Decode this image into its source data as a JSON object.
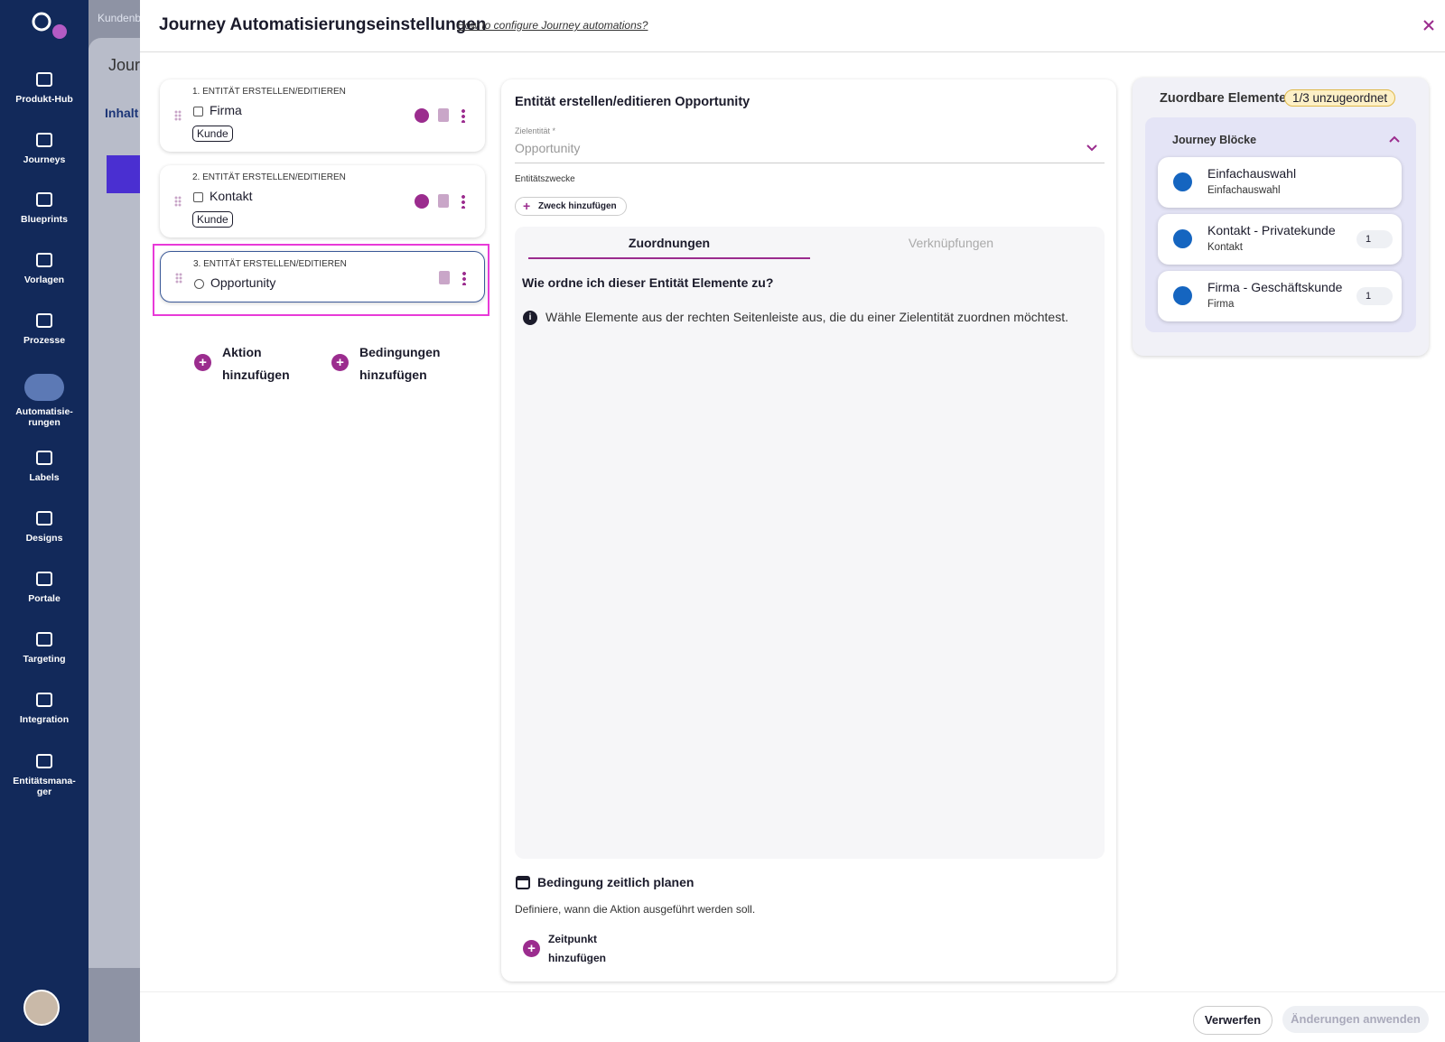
{
  "sidebar": {
    "items": [
      "Produkt-Hub",
      "Journeys",
      "Blueprints",
      "Vorlagen",
      "Prozesse",
      "Automatisie-\nrungen",
      "Labels",
      "Designs",
      "Portale",
      "Targeting",
      "Integration",
      "Entitätsmana-\nger"
    ]
  },
  "background": {
    "breadcrumb": "Kundenb",
    "page_title": "Jour",
    "tab": "Inhalt"
  },
  "header": {
    "title": "Journey Automatisierungseinstellungen",
    "help_link": "How to configure Journey automations?"
  },
  "actions": [
    {
      "label": "1. ENTITÄT ERSTELLEN/EDITIEREN",
      "entity": "Firma",
      "tag": "Kunde"
    },
    {
      "label": "2. ENTITÄT ERSTELLEN/EDITIEREN",
      "entity": "Kontakt",
      "tag": "Kunde"
    },
    {
      "label": "3. ENTITÄT ERSTELLEN/EDITIEREN",
      "entity": "Opportunity"
    }
  ],
  "add_buttons": {
    "action": "Aktion\nhinzufügen",
    "condition": "Bedingungen\nhinzufügen"
  },
  "editor": {
    "title": "Entität erstellen/editieren Opportunity",
    "target_label": "Zielentität *",
    "target_value": "Opportunity",
    "purposes_label": "Entitätszwecke",
    "add_purpose": "Zweck hinzufügen",
    "tabs": [
      "Zuordnungen",
      "Verknüpfungen"
    ],
    "question": "Wie ordne ich dieser Entität Elemente zu?",
    "info": "Wähle Elemente aus der rechten Seitenleiste aus, die du einer Zielentität zuordnen möchtest.",
    "schedule_title": "Bedingung zeitlich planen",
    "schedule_desc": "Definiere, wann die Aktion ausgeführt werden soll.",
    "add_time": "Zeitpunkt\nhinzufügen"
  },
  "elements": {
    "title": "Zuordbare Elemente",
    "badge": "1/3 unzugeordnet",
    "section": "Journey Blöcke",
    "items": [
      {
        "title": "Einfachauswahl",
        "subtitle": "Einfachauswahl"
      },
      {
        "title": "Kontakt - Privatekunde",
        "subtitle": "Kontakt",
        "count": "1"
      },
      {
        "title": "Firma - Geschäftskunde",
        "subtitle": "Firma",
        "count": "1"
      }
    ]
  },
  "footer": {
    "discard": "Verwerfen",
    "apply": "Änderungen anwenden"
  }
}
